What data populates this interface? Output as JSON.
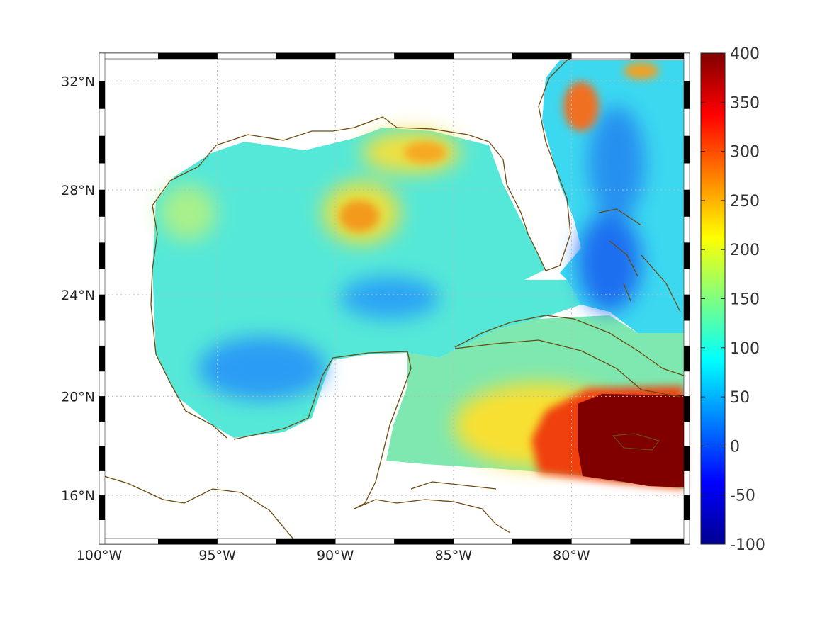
{
  "chart_data": {
    "type": "heatmap",
    "title": "",
    "projection": "lon/lat map, Gulf of Mexico and Caribbean",
    "lon_range": [
      -100,
      -75
    ],
    "lat_range": [
      14,
      33
    ],
    "x_tick_labels": [
      "100°W",
      "95°W",
      "90°W",
      "85°W",
      "80°W"
    ],
    "x_tick_values": [
      -100,
      -95,
      -90,
      -85,
      -80
    ],
    "y_tick_labels": [
      "32°N",
      "28°N",
      "24°N",
      "20°N",
      "16°N"
    ],
    "y_tick_values": [
      32,
      28,
      24,
      20,
      16
    ],
    "grid": true,
    "colormap": "jet",
    "colorbar": {
      "range": [
        -100,
        400
      ],
      "tick_labels": [
        "400",
        "350",
        "300",
        "250",
        "200",
        "150",
        "100",
        "50",
        "0",
        "-50",
        "-100"
      ],
      "tick_values": [
        400,
        350,
        300,
        250,
        200,
        150,
        100,
        50,
        0,
        -50,
        -100
      ],
      "placement": "right"
    },
    "features": [
      {
        "name": "Gulf of Mexico background",
        "approx_value": 110
      },
      {
        "name": "Loop Current eddy",
        "lon": -89,
        "lat": 27,
        "approx_value": 260
      },
      {
        "name": "Northern Gulf shelf",
        "lon": -86.5,
        "lat": 29.5,
        "approx_value": 220
      },
      {
        "name": "Caribbean south of Cuba high",
        "lon": -77.5,
        "lat": 18,
        "approx_value": 400
      },
      {
        "name": "Bay of Campeche low",
        "lon": -93,
        "lat": 20.5,
        "approx_value": 60
      },
      {
        "name": "Bahamas low",
        "lon": -78,
        "lat": 24.5,
        "approx_value": 40
      },
      {
        "name": "Carolina coast high",
        "lon": -79.5,
        "lat": 31.5,
        "approx_value": 300
      }
    ]
  },
  "colors": {
    "coast": "#6b4a10",
    "grid": "#bbbbbb"
  }
}
